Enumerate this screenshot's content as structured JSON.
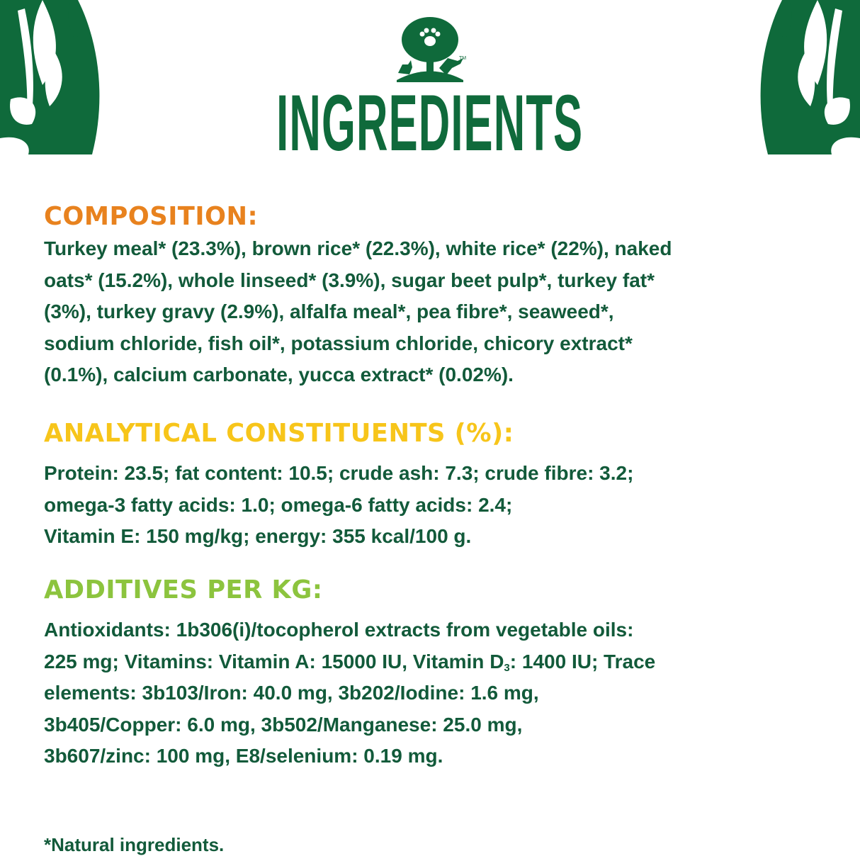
{
  "colors": {
    "brand_green": "#0f6a3b",
    "text": "#125a3a",
    "composition": "#e8821e",
    "analytical": "#f7c51a",
    "additives": "#8cc43e"
  },
  "header": {
    "title": "INGREDIENTS",
    "logo": "tree-paw-cat-dog-logo",
    "logo_mark": "TM"
  },
  "composition": {
    "heading": "COMPOSITION:",
    "lines": [
      "Turkey meal* (23.3%), brown rice* (22.3%), white rice* (22%), naked",
      "oats* (15.2%), whole linseed* (3.9%), sugar beet pulp*, turkey fat*",
      "(3%), turkey gravy (2.9%), alfalfa meal*, pea fibre*, seaweed*,",
      "sodium chloride, fish oil*, potassium chloride, chicory extract*",
      "(0.1%), calcium carbonate, yucca extract* (0.02%)."
    ]
  },
  "analytical": {
    "heading": "ANALYTICAL CONSTITUENTS (%):",
    "lines": [
      "Protein: 23.5; fat content: 10.5; crude ash: 7.3; crude fibre: 3.2;",
      "omega-3 fatty acids: 1.0; omega-6 fatty acids: 2.4;",
      "Vitamin E: 150 mg/kg; energy: 355 kcal/100 g."
    ]
  },
  "additives": {
    "heading": "ADDITIVES PER KG:",
    "lines": [
      "Antioxidants: 1b306(i)/tocopherol extracts from vegetable oils:",
      "225 mg; Vitamins: Vitamin A: 15000 IU, Vitamin D",
      "elements: 3b103/Iron: 40.0 mg, 3b202/Iodine: 1.6 mg,",
      "3b405/Copper: 6.0 mg, 3b502/Manganese: 25.0 mg,",
      "3b607/zinc: 100 mg, E8/selenium: 0.19 mg."
    ],
    "line2_sub": "3",
    "line2_rest": ": 1400 IU; Trace"
  },
  "footnote": "*Natural ingredients."
}
